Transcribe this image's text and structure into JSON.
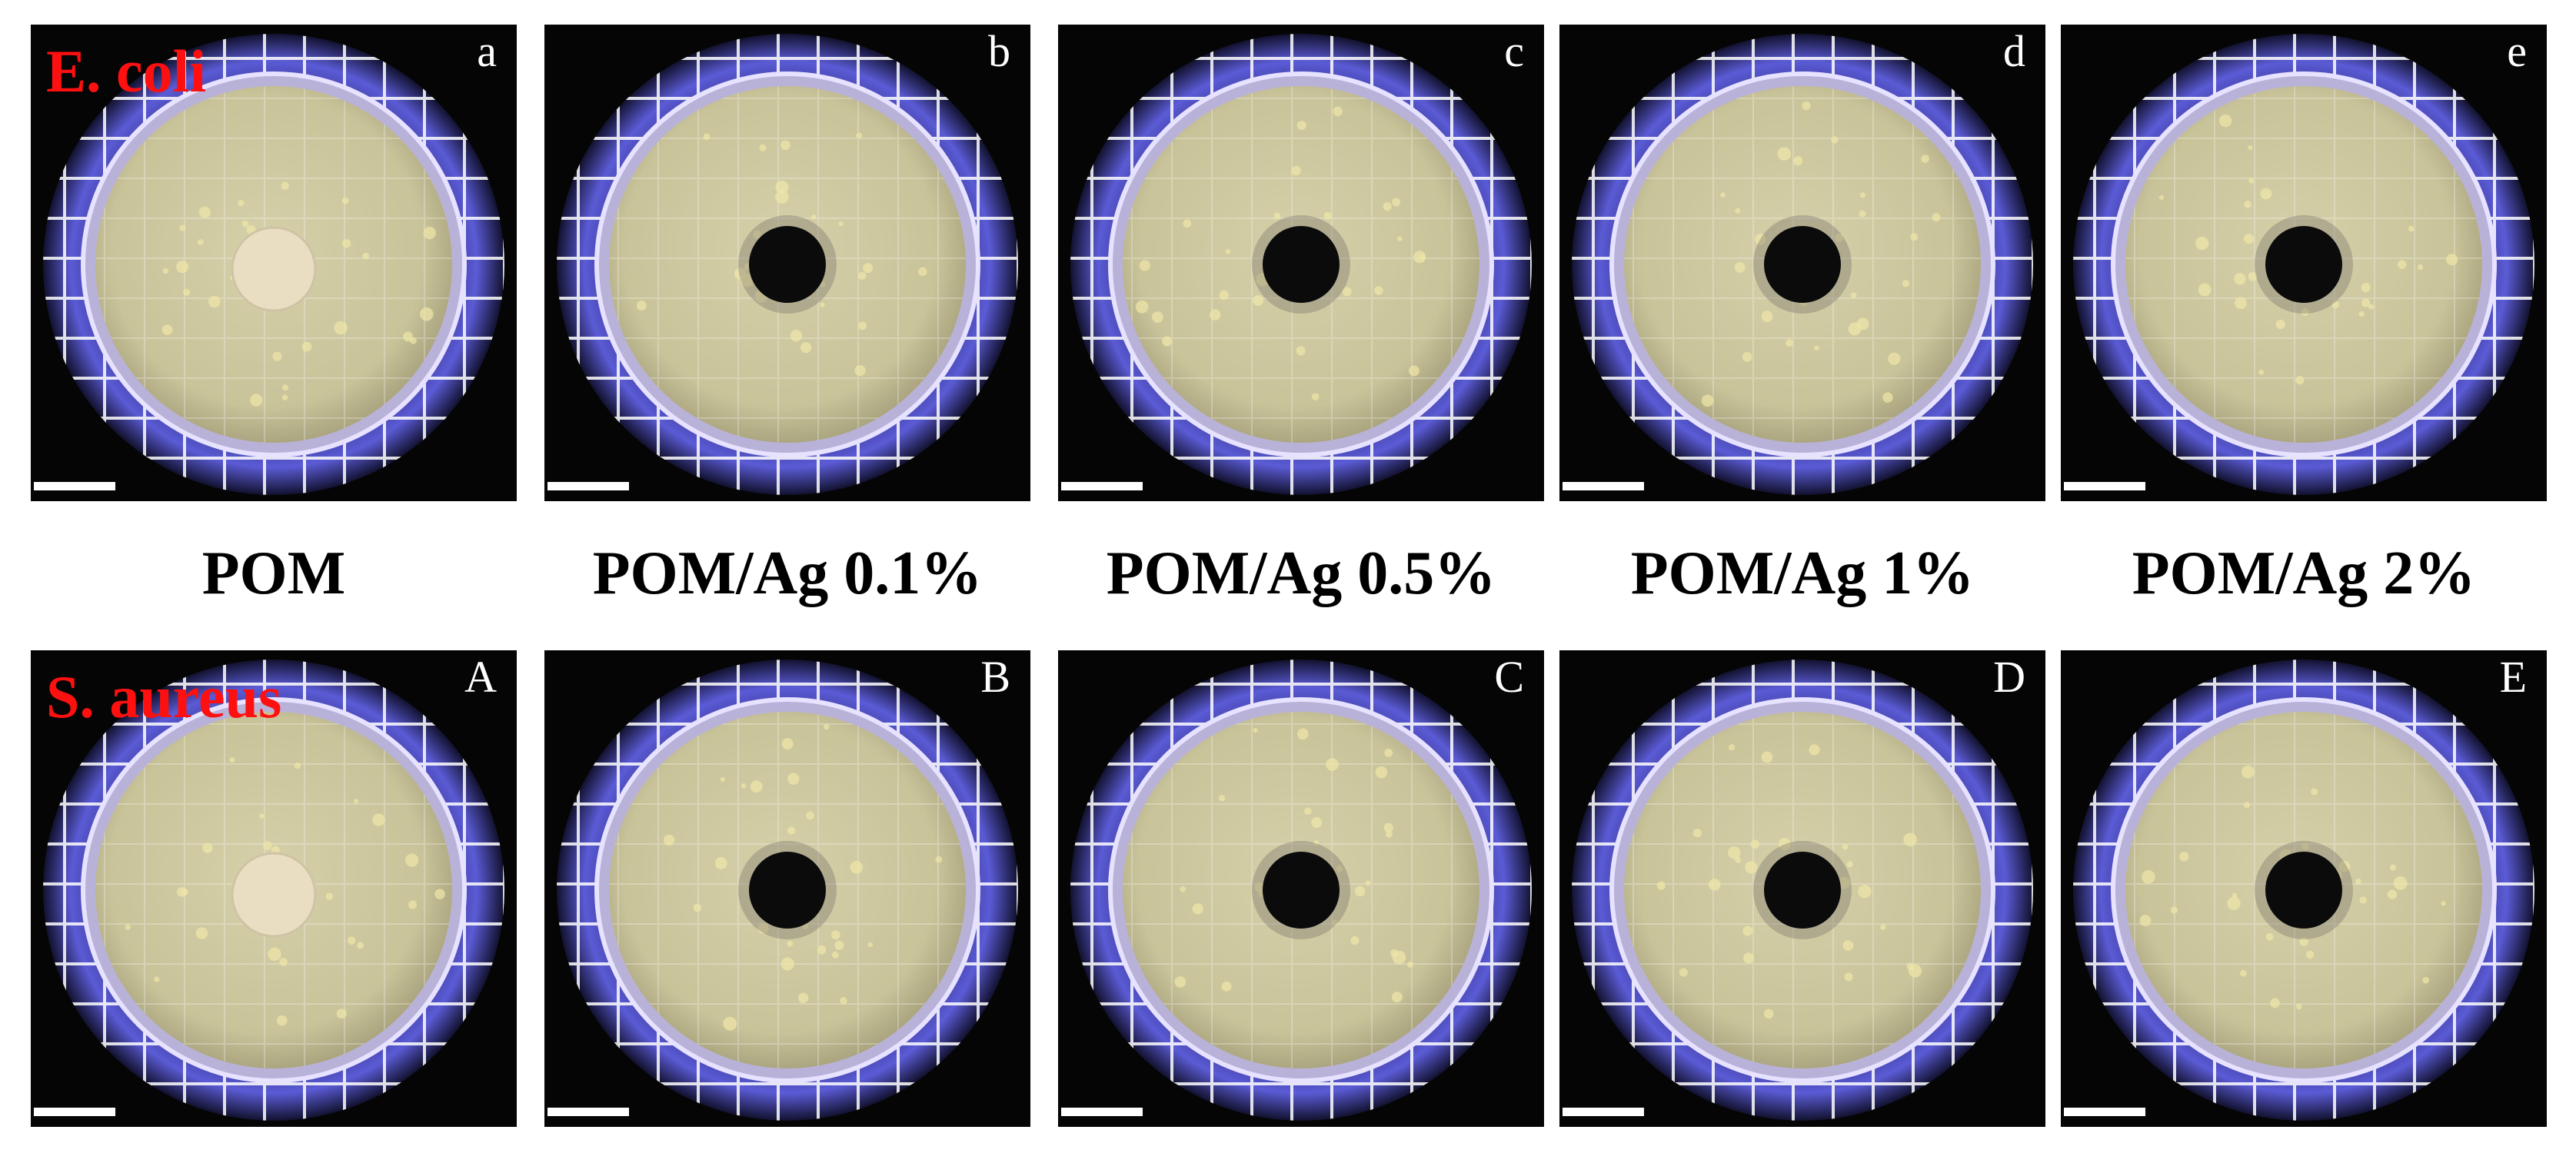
{
  "species": {
    "top": "E. coli",
    "bottom": "S. aureus"
  },
  "samples": [
    "POM",
    "POM/Ag 0.1%",
    "POM/Ag 0.5%",
    "POM/Ag 1%",
    "POM/Ag 2%"
  ],
  "panel_letters": {
    "top": [
      "a",
      "b",
      "c",
      "d",
      "e"
    ],
    "bottom": [
      "A",
      "B",
      "C",
      "D",
      "E"
    ]
  },
  "colors": {
    "species_label": "#ff1010",
    "background": "#050505",
    "grid_glow": "#5b5bd6",
    "agar": "#c9c39a",
    "disc_control": "#e9ddc2",
    "disc_silver": "#0b0b0b"
  }
}
